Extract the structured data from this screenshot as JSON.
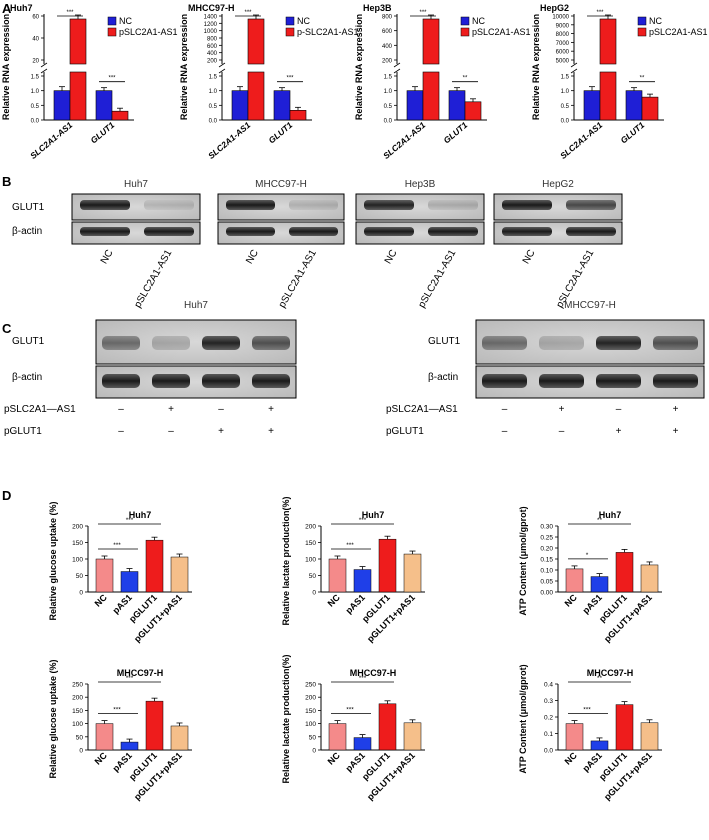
{
  "panels": {
    "a": {
      "letter": "A",
      "ylabel": "Relative RNA expression",
      "charts": [
        {
          "title": "Huh7",
          "s1": "NC",
          "s2": "pSLC2A1-AS1",
          "upper_ticks": [
            "20",
            "40",
            "60"
          ],
          "lower_ticks": [
            "0.0",
            "0.5",
            "1.0",
            "1.5"
          ],
          "sig1": "***",
          "sig2": "***"
        },
        {
          "title": "MHCC97-H",
          "s1": "NC",
          "s2": "p-SLC2A1-AS1",
          "upper_ticks": [
            "200",
            "400",
            "600",
            "800",
            "1000",
            "1200",
            "1400"
          ],
          "lower_ticks": [
            "0.0",
            "0.5",
            "1.0",
            "1.5"
          ],
          "sig1": "***",
          "sig2": "***"
        },
        {
          "title": "Hep3B",
          "s1": "NC",
          "s2": "pSLC2A1-AS1",
          "upper_ticks": [
            "200",
            "400",
            "600",
            "800"
          ],
          "lower_ticks": [
            "0.0",
            "0.5",
            "1.0",
            "1.5"
          ],
          "sig1": "***",
          "sig2": "**"
        },
        {
          "title": "HepG2",
          "s1": "NC",
          "s2": "pSLC2A1-AS1",
          "upper_ticks": [
            "5000",
            "6000",
            "7000",
            "8000",
            "9000",
            "10000"
          ],
          "lower_ticks": [
            "0.0",
            "0.5",
            "1.0",
            "1.5"
          ],
          "sig1": "***",
          "sig2": "**"
        }
      ],
      "xcats": [
        "SLC2A1-AS1",
        "GLUT1"
      ]
    },
    "b": {
      "letter": "B",
      "titles": [
        "Huh7",
        "MHCC97-H",
        "Hep3B",
        "HepG2"
      ],
      "row1": "GLUT1",
      "row2": "β-actin",
      "lanes": [
        "NC",
        "pSLC2A1-AS1"
      ]
    },
    "c": {
      "letter": "C",
      "left_title": "Huh7",
      "right_title": "MHCC97-H",
      "row1": "GLUT1",
      "row2": "β-actin",
      "cond1": "pSLC2A1—AS1",
      "cond2": "pGLUT1",
      "cond1_signs": [
        "–",
        "+",
        "–",
        "+"
      ],
      "cond2_signs": [
        "–",
        "–",
        "+",
        "+"
      ]
    },
    "d": {
      "letter": "D",
      "xcats": [
        "NC",
        "pAS1",
        "pGLUT1",
        "pGLUT1+pAS1"
      ],
      "charts": [
        {
          "title": "Huh7",
          "ylabel": "Relative glucose uptake (%)",
          "ticks": [
            "0",
            "50",
            "100",
            "150",
            "200"
          ],
          "sig": [
            "***",
            "***"
          ]
        },
        {
          "title": "Huh7",
          "ylabel": "Relative lactate production(%)",
          "ticks": [
            "0",
            "50",
            "100",
            "150",
            "200"
          ],
          "sig": [
            "***",
            "***"
          ]
        },
        {
          "title": "Huh7",
          "ylabel": "ATP Content (μmol/gprot)",
          "ticks": [
            "0.00",
            "0.05",
            "0.10",
            "0.15",
            "0.20",
            "0.25",
            "0.30"
          ],
          "sig": [
            "*",
            "**"
          ]
        },
        {
          "title": "MHCC97-H",
          "ylabel": "Relative glucose uptake (%)",
          "ticks": [
            "0",
            "50",
            "100",
            "150",
            "200",
            "250"
          ],
          "sig": [
            "***",
            "***"
          ]
        },
        {
          "title": "MHCC97-H",
          "ylabel": "Relative lactate production(%)",
          "ticks": [
            "0",
            "50",
            "100",
            "150",
            "200",
            "250"
          ],
          "sig": [
            "***",
            "***"
          ]
        },
        {
          "title": "MHCC97-H",
          "ylabel": "ATP Content (μmol/gprot)",
          "ticks": [
            "0.0",
            "0.1",
            "0.2",
            "0.3",
            "0.4"
          ],
          "sig": [
            "***",
            "**"
          ]
        }
      ]
    }
  },
  "colors": {
    "nc": "#1f1fd6",
    "treat": "#ee1c1c",
    "d_nc": "#f48a8a",
    "d_pas1": "#1f3fe8",
    "d_pglut1": "#ee1c1c",
    "d_combo": "#f5bf8a"
  },
  "chart_data": [
    {
      "type": "bar",
      "title": "Huh7",
      "ylabel": "Relative RNA expression",
      "categories": [
        "SLC2A1-AS1",
        "GLUT1"
      ],
      "series": [
        {
          "name": "NC",
          "values": [
            1.0,
            1.0
          ]
        },
        {
          "name": "pSLC2A1-AS1",
          "values": [
            49,
            0.3
          ]
        }
      ]
    },
    {
      "type": "bar",
      "title": "MHCC97-H",
      "ylabel": "Relative RNA expression",
      "categories": [
        "SLC2A1-AS1",
        "GLUT1"
      ],
      "series": [
        {
          "name": "NC",
          "values": [
            1.0,
            1.0
          ]
        },
        {
          "name": "p-SLC2A1-AS1",
          "values": [
            1180,
            0.33
          ]
        }
      ]
    },
    {
      "type": "bar",
      "title": "Hep3B",
      "ylabel": "Relative RNA expression",
      "categories": [
        "SLC2A1-AS1",
        "GLUT1"
      ],
      "series": [
        {
          "name": "NC",
          "values": [
            1.0,
            1.0
          ]
        },
        {
          "name": "pSLC2A1-AS1",
          "values": [
            550,
            0.62
          ]
        }
      ]
    },
    {
      "type": "bar",
      "title": "HepG2",
      "ylabel": "Relative RNA expression",
      "categories": [
        "SLC2A1-AS1",
        "GLUT1"
      ],
      "series": [
        {
          "name": "NC",
          "values": [
            1.0,
            1.0
          ]
        },
        {
          "name": "pSLC2A1-AS1",
          "values": [
            8300,
            0.78
          ]
        }
      ]
    },
    {
      "type": "bar",
      "title": "Huh7",
      "ylabel": "Relative glucose uptake (%)",
      "categories": [
        "NC",
        "pAS1",
        "pGLUT1",
        "pGLUT1+pAS1"
      ],
      "values": [
        100,
        62,
        157,
        106
      ],
      "ylim": [
        0,
        200
      ]
    },
    {
      "type": "bar",
      "title": "Huh7",
      "ylabel": "Relative lactate production(%)",
      "categories": [
        "NC",
        "pAS1",
        "pGLUT1",
        "pGLUT1+pAS1"
      ],
      "values": [
        100,
        68,
        160,
        115
      ],
      "ylim": [
        0,
        200
      ]
    },
    {
      "type": "bar",
      "title": "Huh7",
      "ylabel": "ATP Content (μmol/gprot)",
      "categories": [
        "NC",
        "pAS1",
        "pGLUT1",
        "pGLUT1+pAS1"
      ],
      "values": [
        0.105,
        0.07,
        0.18,
        0.123
      ],
      "ylim": [
        0,
        0.3
      ]
    },
    {
      "type": "bar",
      "title": "MHCC97-H",
      "ylabel": "Relative glucose uptake (%)",
      "categories": [
        "NC",
        "pAS1",
        "pGLUT1",
        "pGLUT1+pAS1"
      ],
      "values": [
        100,
        30,
        185,
        91
      ],
      "ylim": [
        0,
        250
      ]
    },
    {
      "type": "bar",
      "title": "MHCC97-H",
      "ylabel": "Relative lactate production(%)",
      "categories": [
        "NC",
        "pAS1",
        "pGLUT1",
        "pGLUT1+pAS1"
      ],
      "values": [
        100,
        47,
        175,
        103
      ],
      "ylim": [
        0,
        250
      ]
    },
    {
      "type": "bar",
      "title": "MHCC97-H",
      "ylabel": "ATP Content (μmol/gprot)",
      "categories": [
        "NC",
        "pAS1",
        "pGLUT1",
        "pGLUT1+pAS1"
      ],
      "values": [
        0.16,
        0.055,
        0.275,
        0.165
      ],
      "ylim": [
        0,
        0.4
      ]
    }
  ]
}
